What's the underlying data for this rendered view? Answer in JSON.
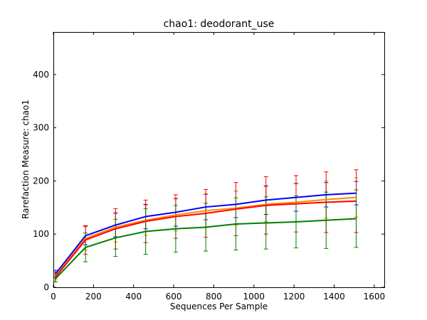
{
  "chart_data": {
    "type": "line",
    "title": "chao1: deodorant_use",
    "xlabel": "Sequences Per Sample",
    "ylabel": "Rarefaction Measure: chao1",
    "xlim": [
      0,
      1650
    ],
    "ylim": [
      0,
      480
    ],
    "xticks": [
      0,
      200,
      400,
      600,
      800,
      1000,
      1200,
      1400,
      1600
    ],
    "yticks": [
      0,
      100,
      200,
      300,
      400
    ],
    "x": [
      10,
      160,
      310,
      460,
      610,
      760,
      910,
      1060,
      1210,
      1360,
      1510
    ],
    "grid": false,
    "legend": "none",
    "series": [
      {
        "color": "#0000ff",
        "values": [
          25,
          97,
          117,
          133,
          141,
          151,
          156,
          164,
          169,
          174,
          177
        ],
        "err_low": [
          18,
          80,
          95,
          110,
          115,
          127,
          131,
          137,
          143,
          151,
          155
        ],
        "err_high": [
          32,
          115,
          139,
          156,
          167,
          175,
          181,
          191,
          195,
          197,
          199
        ]
      },
      {
        "color": "#ff8c00",
        "values": [
          21,
          92,
          113,
          126,
          136,
          144,
          149,
          156,
          160,
          165,
          169
        ],
        "err_low": [
          14,
          70,
          85,
          98,
          106,
          112,
          117,
          123,
          124,
          130,
          132
        ],
        "err_high": [
          28,
          114,
          141,
          154,
          166,
          176,
          181,
          189,
          196,
          200,
          206
        ]
      },
      {
        "color": "#ff0000",
        "values": [
          19,
          89,
          110,
          124,
          133,
          139,
          147,
          154,
          157,
          160,
          162
        ],
        "err_low": [
          10,
          62,
          72,
          84,
          92,
          94,
          97,
          100,
          104,
          103,
          103
        ],
        "err_high": [
          28,
          116,
          148,
          164,
          174,
          184,
          197,
          208,
          210,
          217,
          221
        ]
      },
      {
        "color": "#008000",
        "values": [
          16,
          75,
          93,
          105,
          110,
          113,
          119,
          121,
          123,
          126,
          129
        ],
        "err_low": [
          10,
          48,
          58,
          62,
          66,
          68,
          70,
          72,
          74,
          73,
          75
        ],
        "err_high": [
          22,
          102,
          128,
          148,
          154,
          158,
          168,
          170,
          172,
          179,
          183
        ]
      }
    ]
  }
}
